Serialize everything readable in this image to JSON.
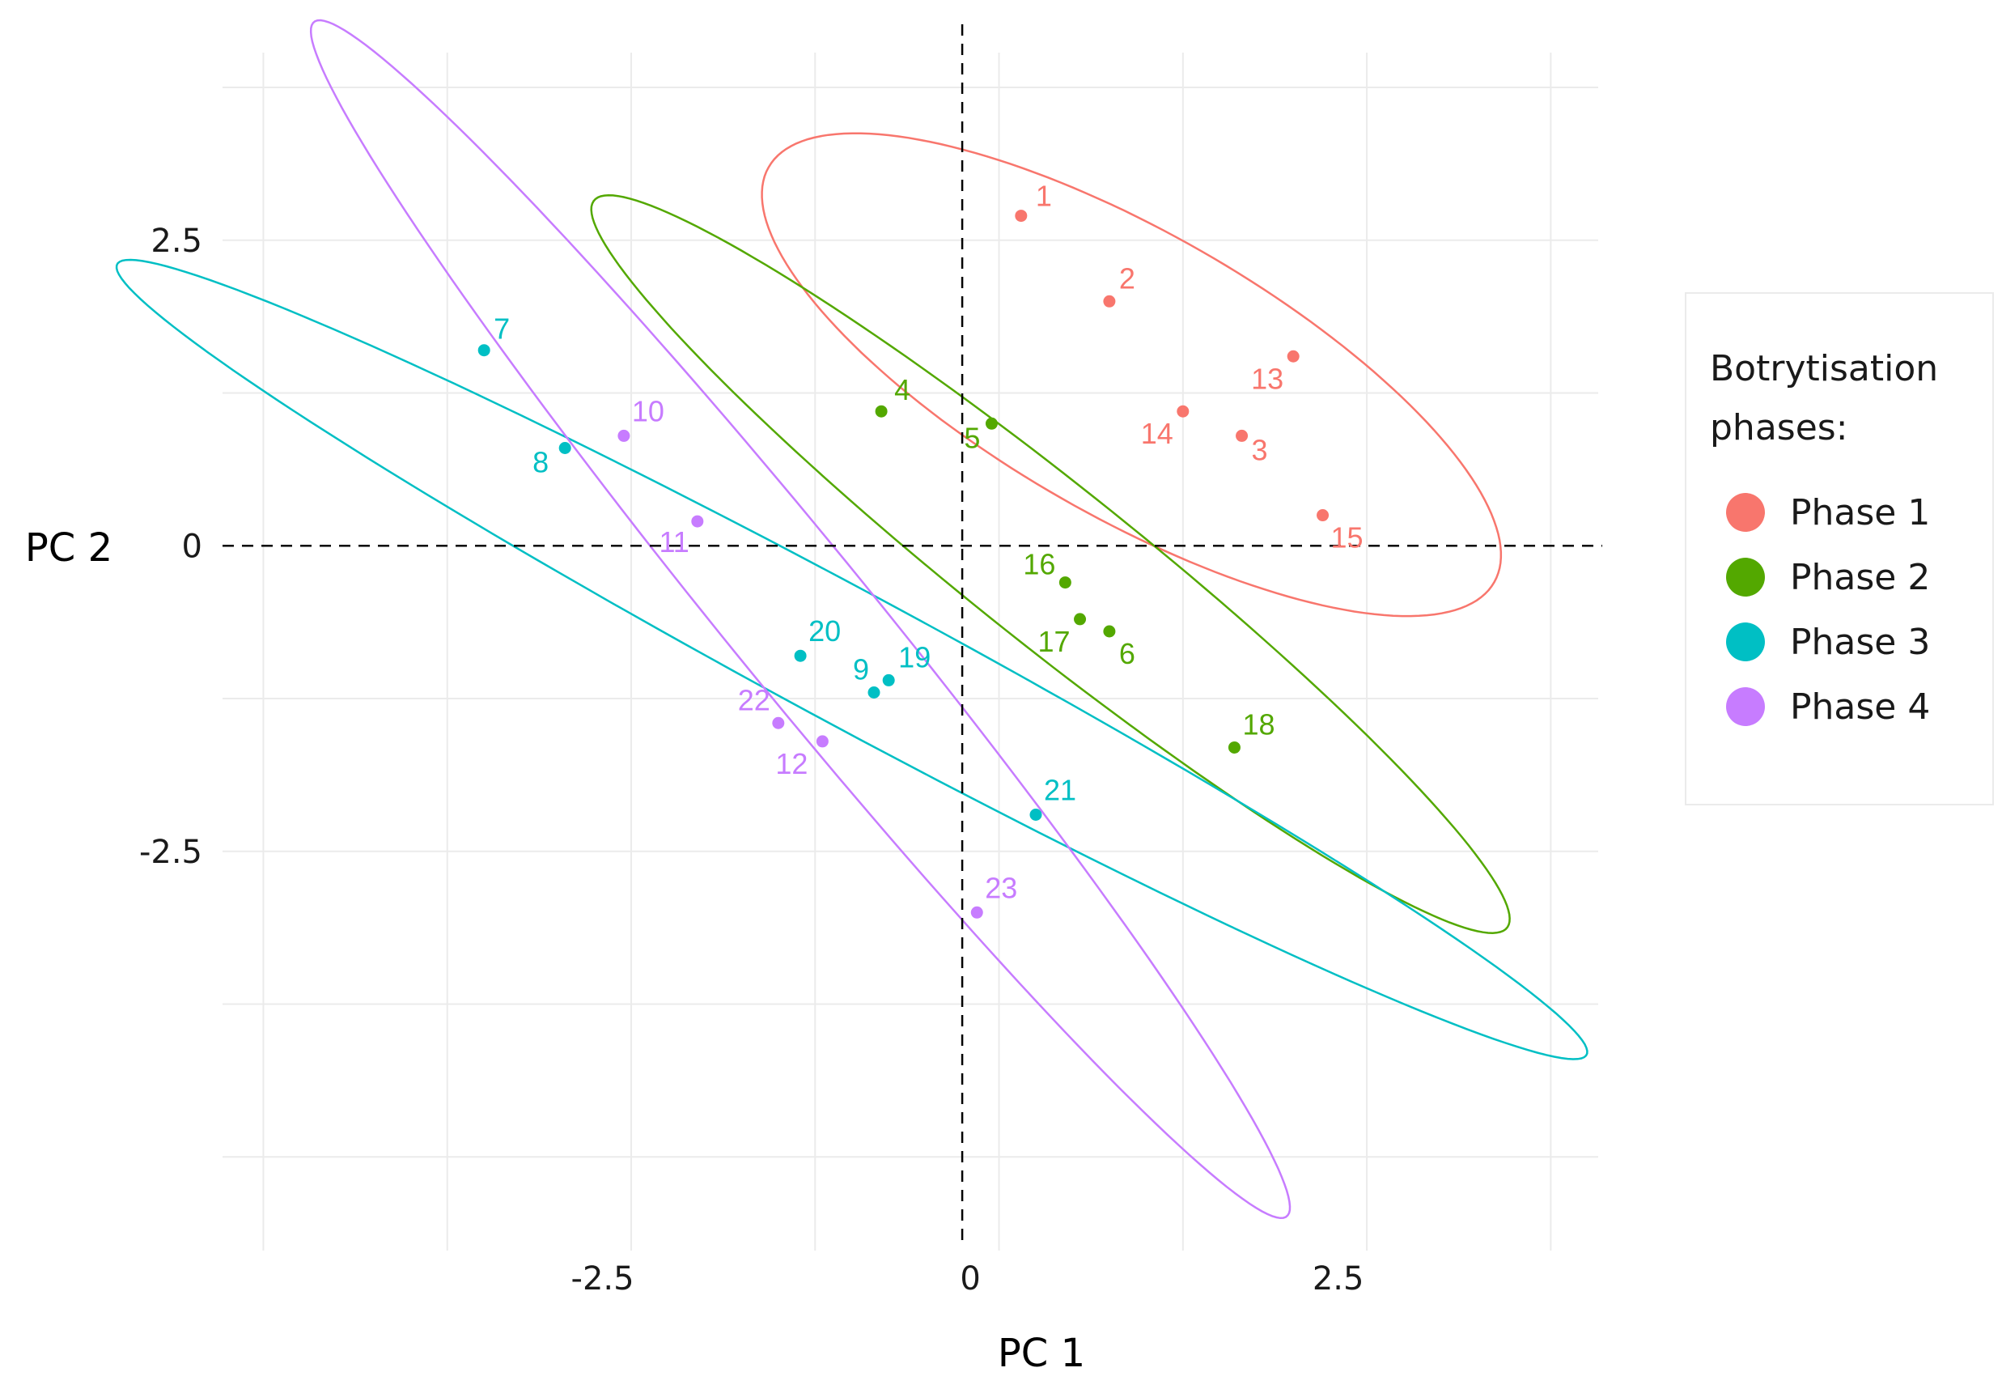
{
  "chart_data": {
    "type": "scatter",
    "title": "",
    "xlabel": "PC 1",
    "ylabel": "PC 2",
    "xlim": [
      -5,
      4.35
    ],
    "ylim": [
      -5.7,
      4.3
    ],
    "x_ticks": [
      -2.5,
      0,
      2.5
    ],
    "x_tick_labels": [
      "-2.5",
      "0",
      "2.5"
    ],
    "y_ticks": [
      2.5,
      0,
      -2.5
    ],
    "y_tick_labels": [
      "2.5",
      "0",
      "-2.5"
    ],
    "grid": true,
    "reference_lines": [
      "x=0 dashed",
      "y=0 dashed"
    ],
    "legend": {
      "title_lines": [
        "Botrytisation",
        "phases:"
      ],
      "position": "right"
    },
    "series": [
      {
        "name": "Phase 1",
        "color": "#F8766D",
        "points": [
          {
            "label": "1",
            "x": 0.4,
            "y": 2.7
          },
          {
            "label": "2",
            "x": 1.0,
            "y": 2.0
          },
          {
            "label": "3",
            "x": 1.9,
            "y": 0.9
          },
          {
            "label": "13",
            "x": 2.25,
            "y": 1.55
          },
          {
            "label": "14",
            "x": 1.5,
            "y": 1.1
          },
          {
            "label": "15",
            "x": 2.45,
            "y": 0.25
          }
        ],
        "ellipse": {
          "center": [
            1.15,
            1.4
          ],
          "semi_major": 3.0,
          "semi_minor": 1.1,
          "angle_deg": -36
        }
      },
      {
        "name": "Phase 2",
        "color": "#53A800",
        "points": [
          {
            "label": "4",
            "x": -0.55,
            "y": 1.1
          },
          {
            "label": "5",
            "x": 0.2,
            "y": 1.0
          },
          {
            "label": "16",
            "x": 0.7,
            "y": -0.3
          },
          {
            "label": "17",
            "x": 0.8,
            "y": -0.6
          },
          {
            "label": "6",
            "x": 1.0,
            "y": -0.7
          },
          {
            "label": "18",
            "x": 1.85,
            "y": -1.65
          }
        ],
        "ellipse": {
          "center": [
            0.6,
            -0.15
          ],
          "semi_major": 4.3,
          "semi_minor": 0.6,
          "angle_deg": -44
        }
      },
      {
        "name": "Phase 3",
        "color": "#00BFC4",
        "points": [
          {
            "label": "7",
            "x": -3.25,
            "y": 1.6
          },
          {
            "label": "8",
            "x": -2.7,
            "y": 0.8
          },
          {
            "label": "20",
            "x": -1.1,
            "y": -0.9
          },
          {
            "label": "19",
            "x": -0.5,
            "y": -1.1
          },
          {
            "label": "9",
            "x": -0.6,
            "y": -1.2
          },
          {
            "label": "21",
            "x": 0.5,
            "y": -2.2
          }
        ],
        "ellipse": {
          "center": [
            -0.75,
            -0.93
          ],
          "semi_major": 5.95,
          "semi_minor": 0.52,
          "angle_deg": -33
        }
      },
      {
        "name": "Phase 4",
        "color": "#C77CFF",
        "points": [
          {
            "label": "10",
            "x": -2.3,
            "y": 0.9
          },
          {
            "label": "11",
            "x": -1.8,
            "y": 0.2
          },
          {
            "label": "22",
            "x": -1.25,
            "y": -1.45
          },
          {
            "label": "12",
            "x": -0.95,
            "y": -1.6
          },
          {
            "label": "23",
            "x": 0.1,
            "y": -3.0
          }
        ],
        "ellipse": {
          "center": [
            -1.1,
            -0.6
          ],
          "semi_major": 5.9,
          "semi_minor": 0.52,
          "angle_deg": -56
        }
      }
    ]
  }
}
